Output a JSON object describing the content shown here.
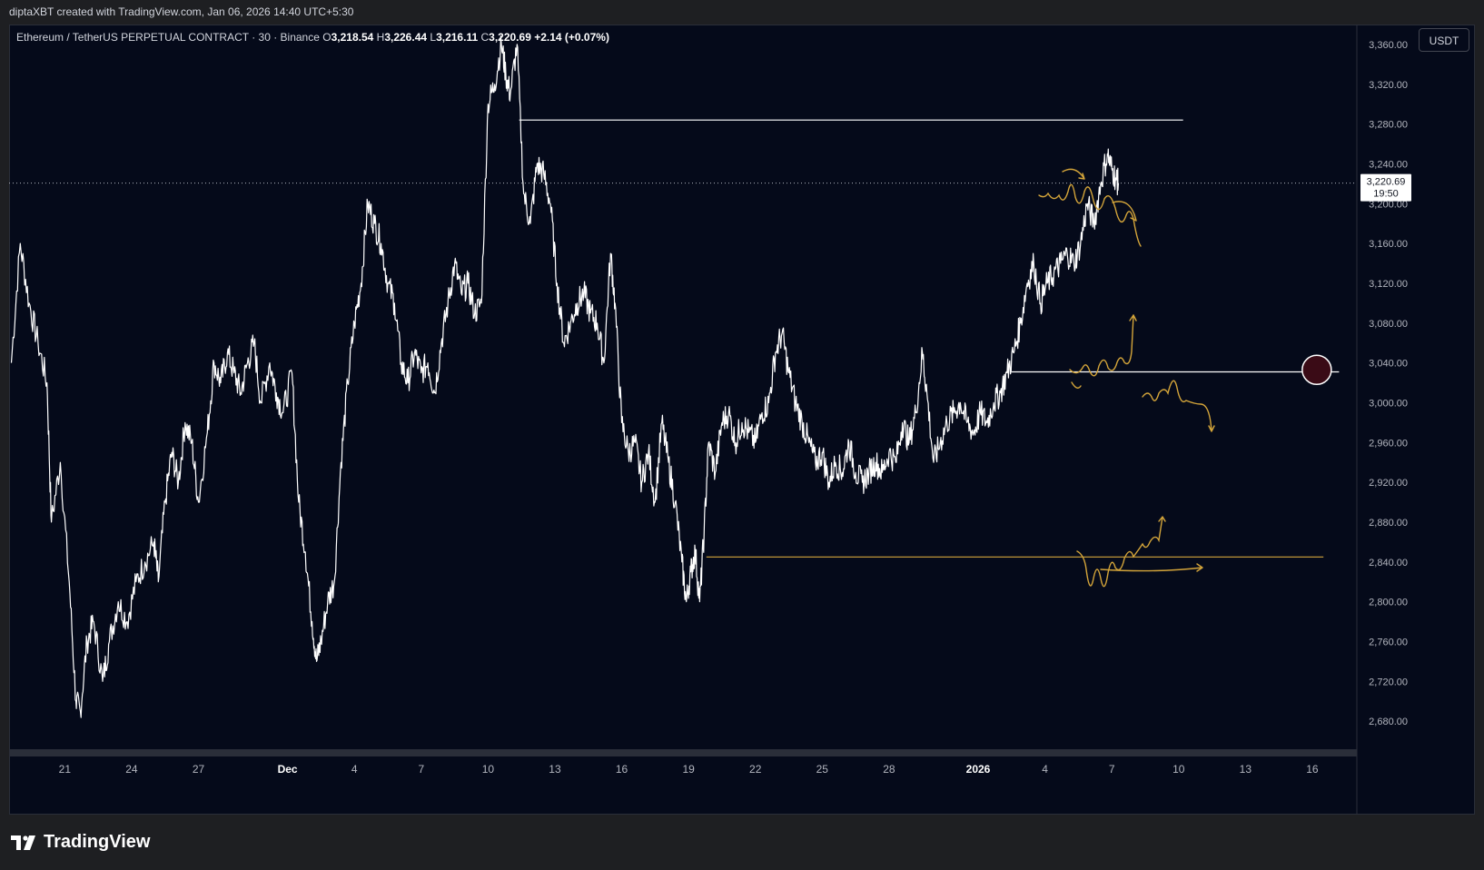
{
  "caption": "diptaXBT created with TradingView.com, Jan 06, 2026 14:40 UTC+5:30",
  "legend": {
    "symbol": "Ethereum / TetherUS PERPETUAL CONTRACT · 30 · Binance",
    "open_label": "O",
    "open": "3,218.54",
    "high_label": "H",
    "high": "3,226.44",
    "low_label": "L",
    "low": "3,216.11",
    "close_label": "C",
    "close": "3,220.69",
    "change": "+2.14 (+0.07%)"
  },
  "currency_button": "USDT",
  "brand": "TradingView",
  "colors": {
    "background": "#050a1a",
    "price_line": "#ffffff",
    "annotation": "#d4a53a",
    "support_line": "#ffffff"
  },
  "chart_data": {
    "type": "line",
    "title": "",
    "xlabel": "",
    "ylabel": "",
    "ylim": [
      2650,
      3380
    ],
    "y_ticks": [
      2680,
      2720,
      2760,
      2800,
      2840,
      2880,
      2920,
      2960,
      3000,
      3040,
      3080,
      3120,
      3160,
      3200,
      3240,
      3280,
      3320,
      3360
    ],
    "y_tick_labels": [
      "2,680.00",
      "2,720.00",
      "2,760.00",
      "2,800.00",
      "2,840.00",
      "2,880.00",
      "2,920.00",
      "2,960.00",
      "3,000.00",
      "3,040.00",
      "3,080.00",
      "3,120.00",
      "3,160.00",
      "3,200.00",
      "3,240.00",
      "3,280.00",
      "3,320.00",
      "3,360.00"
    ],
    "x_labels": [
      {
        "day": -10,
        "label": "21"
      },
      {
        "day": -7,
        "label": "24"
      },
      {
        "day": -4,
        "label": "27"
      },
      {
        "day": 0,
        "label": "Dec"
      },
      {
        "day": 3,
        "label": "4"
      },
      {
        "day": 6,
        "label": "7"
      },
      {
        "day": 9,
        "label": "10"
      },
      {
        "day": 12,
        "label": "13"
      },
      {
        "day": 15,
        "label": "16"
      },
      {
        "day": 18,
        "label": "19"
      },
      {
        "day": 21,
        "label": "22"
      },
      {
        "day": 24,
        "label": "25"
      },
      {
        "day": 27,
        "label": "28"
      },
      {
        "day": 31,
        "label": "2026"
      },
      {
        "day": 34,
        "label": "4"
      },
      {
        "day": 37,
        "label": "7"
      },
      {
        "day": 40,
        "label": "10"
      },
      {
        "day": 43,
        "label": "13"
      },
      {
        "day": 46,
        "label": "16"
      }
    ],
    "x_day_range": [
      -12.5,
      48
    ],
    "series": [
      {
        "color": "#ffffff",
        "points": [
          [
            -12.4,
            3040
          ],
          [
            -12.0,
            3160
          ],
          [
            -11.6,
            3100
          ],
          [
            -11.2,
            3060
          ],
          [
            -10.8,
            3020
          ],
          [
            -10.6,
            2880
          ],
          [
            -10.2,
            2940
          ],
          [
            -9.8,
            2820
          ],
          [
            -9.5,
            2700
          ],
          [
            -9.3,
            2690
          ],
          [
            -9.0,
            2760
          ],
          [
            -8.7,
            2780
          ],
          [
            -8.3,
            2720
          ],
          [
            -8.0,
            2760
          ],
          [
            -7.6,
            2800
          ],
          [
            -7.2,
            2780
          ],
          [
            -6.8,
            2820
          ],
          [
            -6.4,
            2840
          ],
          [
            -6.0,
            2860
          ],
          [
            -5.8,
            2820
          ],
          [
            -5.5,
            2900
          ],
          [
            -5.2,
            2950
          ],
          [
            -4.9,
            2920
          ],
          [
            -4.6,
            2980
          ],
          [
            -4.3,
            2960
          ],
          [
            -4.0,
            2900
          ],
          [
            -3.6,
            2970
          ],
          [
            -3.3,
            3040
          ],
          [
            -3.0,
            3020
          ],
          [
            -2.7,
            3050
          ],
          [
            -2.4,
            3030
          ],
          [
            -2.1,
            3010
          ],
          [
            -1.8,
            3040
          ],
          [
            -1.5,
            3060
          ],
          [
            -1.2,
            3000
          ],
          [
            -0.8,
            3040
          ],
          [
            -0.5,
            3010
          ],
          [
            -0.2,
            2990
          ],
          [
            0.2,
            3030
          ],
          [
            0.5,
            2900
          ],
          [
            0.8,
            2850
          ],
          [
            1.1,
            2780
          ],
          [
            1.3,
            2740
          ],
          [
            1.5,
            2760
          ],
          [
            1.8,
            2800
          ],
          [
            2.1,
            2820
          ],
          [
            2.4,
            2940
          ],
          [
            2.7,
            3020
          ],
          [
            3.0,
            3080
          ],
          [
            3.3,
            3120
          ],
          [
            3.6,
            3200
          ],
          [
            3.9,
            3180
          ],
          [
            4.2,
            3160
          ],
          [
            4.5,
            3120
          ],
          [
            4.8,
            3100
          ],
          [
            5.1,
            3040
          ],
          [
            5.4,
            3020
          ],
          [
            5.7,
            3050
          ],
          [
            6.0,
            3030
          ],
          [
            6.3,
            3040
          ],
          [
            6.6,
            3010
          ],
          [
            6.9,
            3060
          ],
          [
            7.2,
            3100
          ],
          [
            7.5,
            3140
          ],
          [
            7.8,
            3110
          ],
          [
            8.1,
            3120
          ],
          [
            8.4,
            3090
          ],
          [
            8.7,
            3100
          ],
          [
            9.0,
            3300
          ],
          [
            9.3,
            3320
          ],
          [
            9.6,
            3360
          ],
          [
            9.8,
            3330
          ],
          [
            10.0,
            3310
          ],
          [
            10.3,
            3360
          ],
          [
            10.6,
            3210
          ],
          [
            10.9,
            3180
          ],
          [
            11.2,
            3240
          ],
          [
            11.5,
            3230
          ],
          [
            11.8,
            3200
          ],
          [
            12.1,
            3120
          ],
          [
            12.4,
            3060
          ],
          [
            12.7,
            3080
          ],
          [
            13.0,
            3100
          ],
          [
            13.3,
            3110
          ],
          [
            13.6,
            3090
          ],
          [
            13.9,
            3080
          ],
          [
            14.2,
            3040
          ],
          [
            14.5,
            3150
          ],
          [
            14.7,
            3100
          ],
          [
            15.0,
            2980
          ],
          [
            15.3,
            2950
          ],
          [
            15.6,
            2960
          ],
          [
            15.9,
            2920
          ],
          [
            16.2,
            2950
          ],
          [
            16.5,
            2900
          ],
          [
            16.8,
            2980
          ],
          [
            17.1,
            2940
          ],
          [
            17.4,
            2900
          ],
          [
            17.7,
            2840
          ],
          [
            17.9,
            2800
          ],
          [
            18.1,
            2830
          ],
          [
            18.3,
            2850
          ],
          [
            18.5,
            2800
          ],
          [
            18.7,
            2870
          ],
          [
            18.9,
            2960
          ],
          [
            19.2,
            2930
          ],
          [
            19.5,
            2980
          ],
          [
            19.8,
            2990
          ],
          [
            20.1,
            2960
          ],
          [
            20.4,
            2980
          ],
          [
            20.7,
            2970
          ],
          [
            21.0,
            2960
          ],
          [
            21.3,
            2990
          ],
          [
            21.6,
            3000
          ],
          [
            21.9,
            3050
          ],
          [
            22.2,
            3070
          ],
          [
            22.5,
            3030
          ],
          [
            22.8,
            3000
          ],
          [
            23.1,
            2980
          ],
          [
            23.4,
            2960
          ],
          [
            23.7,
            2940
          ],
          [
            24.0,
            2950
          ],
          [
            24.3,
            2920
          ],
          [
            24.6,
            2940
          ],
          [
            24.9,
            2930
          ],
          [
            25.2,
            2960
          ],
          [
            25.5,
            2930
          ],
          [
            25.8,
            2920
          ],
          [
            26.1,
            2930
          ],
          [
            26.4,
            2940
          ],
          [
            26.7,
            2930
          ],
          [
            27.0,
            2950
          ],
          [
            27.3,
            2940
          ],
          [
            27.6,
            2980
          ],
          [
            27.9,
            2960
          ],
          [
            28.2,
            2990
          ],
          [
            28.5,
            3050
          ],
          [
            28.7,
            3010
          ],
          [
            29.0,
            2940
          ],
          [
            29.3,
            2960
          ],
          [
            29.6,
            2980
          ],
          [
            29.9,
            2990
          ],
          [
            30.2,
            3000
          ],
          [
            30.5,
            2980
          ],
          [
            30.8,
            2970
          ],
          [
            31.1,
            2990
          ],
          [
            31.4,
            2980
          ],
          [
            31.7,
            3000
          ],
          [
            32.0,
            3010
          ],
          [
            32.3,
            3030
          ],
          [
            32.6,
            3050
          ],
          [
            32.9,
            3080
          ],
          [
            33.2,
            3120
          ],
          [
            33.5,
            3140
          ],
          [
            33.8,
            3100
          ],
          [
            34.1,
            3120
          ],
          [
            34.4,
            3130
          ],
          [
            34.7,
            3140
          ],
          [
            35.0,
            3150
          ],
          [
            35.3,
            3140
          ],
          [
            35.6,
            3160
          ],
          [
            35.9,
            3200
          ],
          [
            36.2,
            3180
          ],
          [
            36.5,
            3220
          ],
          [
            36.8,
            3250
          ],
          [
            37.0,
            3235
          ],
          [
            37.2,
            3224
          ],
          [
            37.3,
            3220.69
          ]
        ]
      }
    ],
    "current_price": 3220.69,
    "current_price_label": "3,220.69",
    "countdown": "19:50",
    "levels": [
      {
        "name": "resistance",
        "price": 3284,
        "from_day": 10.4,
        "to_day": 40.2,
        "color": "#ffffff"
      },
      {
        "name": "pivot",
        "price": 3031,
        "from_day": 32.5,
        "to_day": 47.2,
        "color": "#ffffff"
      },
      {
        "name": "support",
        "price": 2845,
        "from_day": 18.8,
        "to_day": 46.5,
        "color": "#d4a53a"
      }
    ],
    "marker": {
      "day": 46.2,
      "price": 3033
    },
    "grid": false
  }
}
